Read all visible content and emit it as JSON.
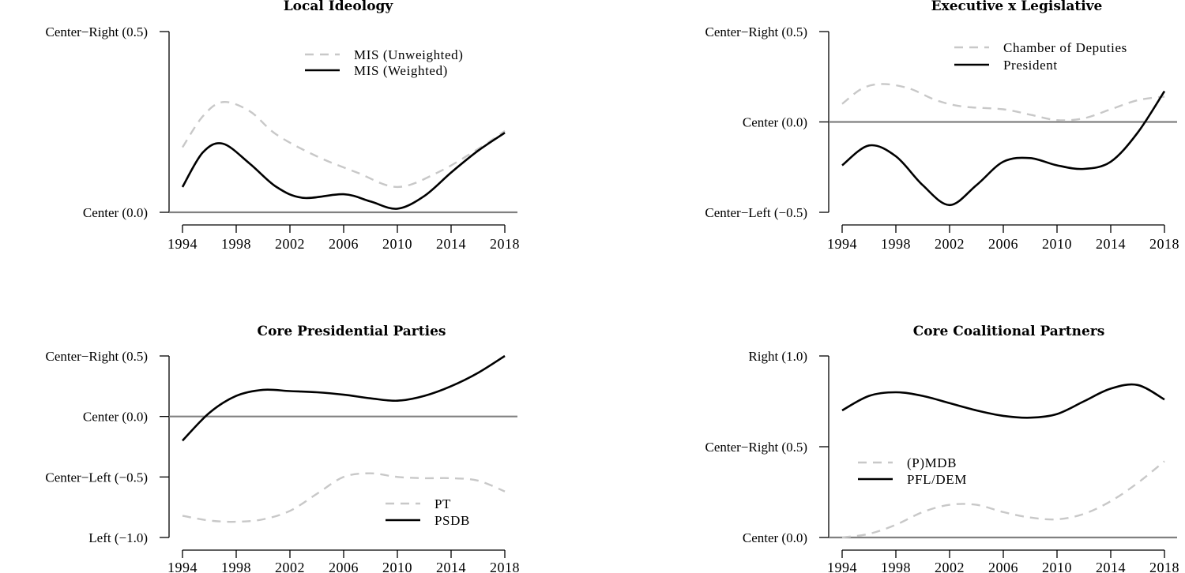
{
  "chart_data": [
    {
      "type": "line",
      "title": "Local Ideology",
      "yticks": [
        {
          "value": 0.0,
          "label": "Center (0.0)"
        },
        {
          "value": 0.5,
          "label": "Center−Right (0.5)"
        }
      ],
      "ylim": [
        0.0,
        0.5
      ],
      "xticks": [
        "1994",
        "1998",
        "2002",
        "2006",
        "2010",
        "2014",
        "2018"
      ],
      "xlim": [
        1994,
        2018
      ],
      "reference_line": 0.0,
      "legend_position": "top-right",
      "series": [
        {
          "name": "MIS (Unweighted)",
          "style": "dashed",
          "color": "#c8c8c8",
          "x": [
            1994,
            1995.5,
            1997,
            1999,
            2001,
            2004,
            2007,
            2010,
            2013,
            2016,
            2018
          ],
          "y": [
            0.18,
            0.265,
            0.305,
            0.28,
            0.215,
            0.155,
            0.11,
            0.07,
            0.11,
            0.175,
            0.225
          ]
        },
        {
          "name": "MIS (Weighted)",
          "style": "solid",
          "color": "#000000",
          "x": [
            1994,
            1995.5,
            1997,
            1999,
            2001,
            2003,
            2006,
            2008,
            2010,
            2012,
            2014,
            2016,
            2018
          ],
          "y": [
            0.07,
            0.165,
            0.19,
            0.135,
            0.07,
            0.04,
            0.05,
            0.03,
            0.01,
            0.045,
            0.11,
            0.17,
            0.22
          ]
        }
      ]
    },
    {
      "type": "line",
      "title": "Executive x Legislative",
      "yticks": [
        {
          "value": -0.5,
          "label": "Center−Left (−0.5)"
        },
        {
          "value": 0.0,
          "label": "Center (0.0)"
        },
        {
          "value": 0.5,
          "label": "Center−Right (0.5)"
        }
      ],
      "ylim": [
        -0.5,
        0.5
      ],
      "xticks": [
        "1994",
        "1998",
        "2002",
        "2006",
        "2010",
        "2014",
        "2018"
      ],
      "xlim": [
        1994,
        2018
      ],
      "reference_line": 0.0,
      "legend_position": "top-right",
      "series": [
        {
          "name": "Chamber of Deputies",
          "style": "dashed",
          "color": "#c8c8c8",
          "x": [
            1994,
            1995.5,
            1997,
            1999,
            2001,
            2003,
            2006,
            2008,
            2010,
            2012,
            2014,
            2016,
            2018
          ],
          "y": [
            0.1,
            0.185,
            0.21,
            0.185,
            0.12,
            0.085,
            0.07,
            0.04,
            0.01,
            0.02,
            0.07,
            0.12,
            0.14
          ]
        },
        {
          "name": "President",
          "style": "solid",
          "color": "#000000",
          "x": [
            1994,
            1996,
            1998,
            2000,
            2002,
            2004,
            2006,
            2008,
            2010,
            2012,
            2014,
            2016,
            2018
          ],
          "y": [
            -0.24,
            -0.13,
            -0.19,
            -0.35,
            -0.46,
            -0.35,
            -0.22,
            -0.2,
            -0.24,
            -0.26,
            -0.22,
            -0.06,
            0.17
          ]
        }
      ]
    },
    {
      "type": "line",
      "title": "Core Presidential Parties",
      "yticks": [
        {
          "value": -1.0,
          "label": "Left (−1.0)"
        },
        {
          "value": -0.5,
          "label": "Center−Left (−0.5)"
        },
        {
          "value": 0.0,
          "label": "Center (0.0)"
        },
        {
          "value": 0.5,
          "label": "Center−Right (0.5)"
        }
      ],
      "ylim": [
        -1.0,
        0.5
      ],
      "xticks": [
        "1994",
        "1998",
        "2002",
        "2006",
        "2010",
        "2014",
        "2018"
      ],
      "xlim": [
        1994,
        2018
      ],
      "reference_line": 0.0,
      "legend_position": "bottom-right",
      "series": [
        {
          "name": "PT",
          "style": "dashed",
          "color": "#c8c8c8",
          "x": [
            1994,
            1996,
            1998,
            2000,
            2002,
            2004,
            2006,
            2008,
            2010,
            2012,
            2014,
            2016,
            2018
          ],
          "y": [
            -0.82,
            -0.86,
            -0.87,
            -0.85,
            -0.78,
            -0.64,
            -0.5,
            -0.47,
            -0.5,
            -0.51,
            -0.51,
            -0.53,
            -0.62
          ]
        },
        {
          "name": "PSDB",
          "style": "solid",
          "color": "#000000",
          "x": [
            1994,
            1996,
            1998,
            2000,
            2002,
            2004,
            2006,
            2008,
            2010,
            2012,
            2014,
            2016,
            2018
          ],
          "y": [
            -0.2,
            0.03,
            0.17,
            0.22,
            0.21,
            0.2,
            0.18,
            0.15,
            0.13,
            0.17,
            0.25,
            0.36,
            0.5
          ]
        }
      ]
    },
    {
      "type": "line",
      "title": "Core Coalitional Partners",
      "yticks": [
        {
          "value": 0.0,
          "label": "Center (0.0)"
        },
        {
          "value": 0.5,
          "label": "Center−Right (0.5)"
        },
        {
          "value": 1.0,
          "label": "Right (1.0)"
        }
      ],
      "ylim": [
        0.0,
        1.0
      ],
      "xticks": [
        "1994",
        "1998",
        "2002",
        "2006",
        "2010",
        "2014",
        "2018"
      ],
      "xlim": [
        1994,
        2018
      ],
      "reference_line": 0.0,
      "legend_position": "center-left",
      "series": [
        {
          "name": "(P)MDB",
          "style": "dashed",
          "color": "#c8c8c8",
          "x": [
            1994,
            1996,
            1998,
            2000,
            2002,
            2004,
            2006,
            2008,
            2010,
            2012,
            2014,
            2016,
            2018
          ],
          "y": [
            0.0,
            0.02,
            0.07,
            0.14,
            0.18,
            0.18,
            0.14,
            0.11,
            0.1,
            0.13,
            0.2,
            0.3,
            0.42
          ]
        },
        {
          "name": "PFL/DEM",
          "style": "solid",
          "color": "#000000",
          "x": [
            1994,
            1996,
            1998,
            2000,
            2002,
            2004,
            2006,
            2008,
            2010,
            2012,
            2014,
            2016,
            2018
          ],
          "y": [
            0.7,
            0.78,
            0.8,
            0.78,
            0.74,
            0.7,
            0.67,
            0.66,
            0.68,
            0.75,
            0.82,
            0.84,
            0.76
          ]
        }
      ]
    }
  ]
}
